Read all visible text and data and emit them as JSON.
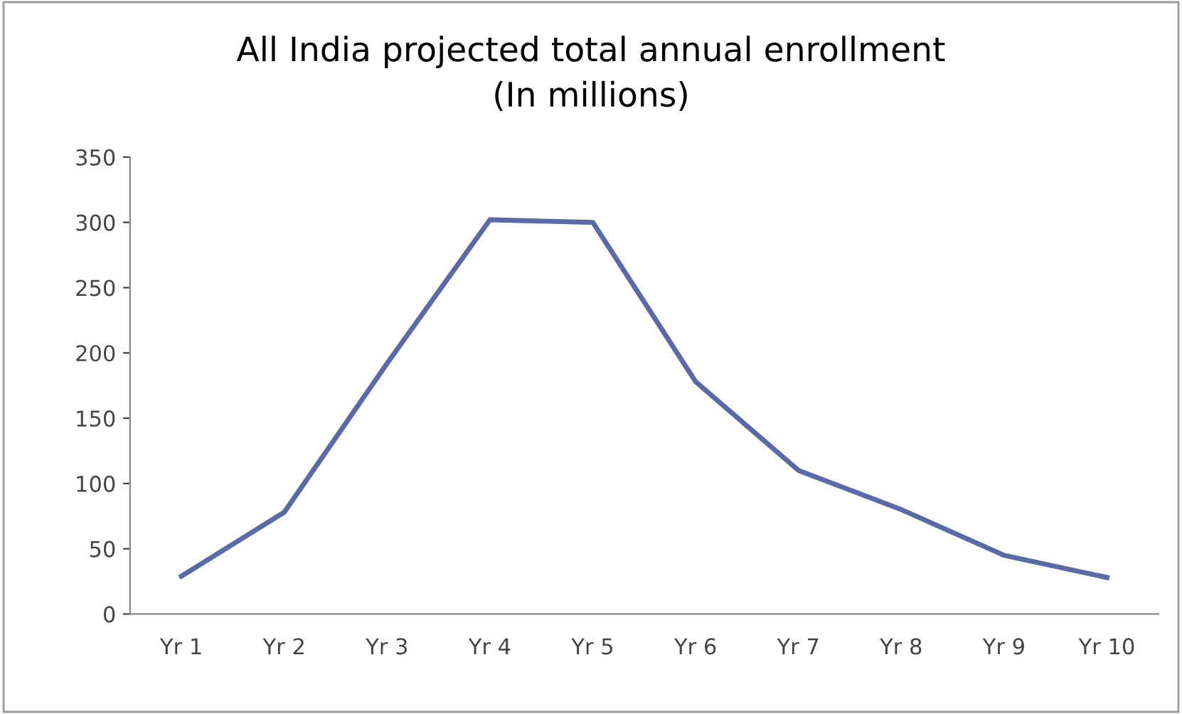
{
  "chart_data": {
    "type": "line",
    "title": "All India projected total annual enrollment\n(In millions)",
    "categories": [
      "Yr 1",
      "Yr 2",
      "Yr 3",
      "Yr 4",
      "Yr 5",
      "Yr 6",
      "Yr 7",
      "Yr 8",
      "Yr 9",
      "Yr 10"
    ],
    "series": [
      {
        "color": "#5a6aa6",
        "values": [
          29,
          78,
          192,
          302,
          300,
          178,
          110,
          80,
          45,
          28
        ]
      }
    ],
    "ylim": [
      0,
      350
    ],
    "yticks": [
      0,
      50,
      100,
      150,
      200,
      250,
      300,
      350
    ],
    "grid": false,
    "legend": false,
    "marker": "none",
    "line_style": "solid"
  }
}
